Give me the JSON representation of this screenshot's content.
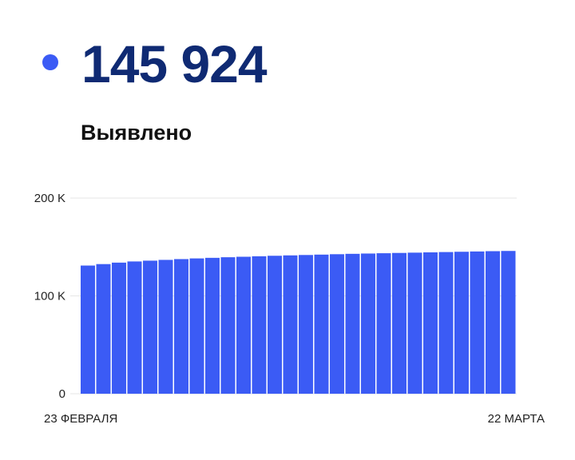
{
  "colors": {
    "accent": "#3b5bf5",
    "number": "#0f2a73",
    "grid": "#e6e6e6"
  },
  "header": {
    "value": "145 924",
    "label": "Выявлено"
  },
  "chart_data": {
    "type": "bar",
    "ylim": [
      0,
      200000
    ],
    "y_ticks": [
      {
        "value": 0,
        "label": "0"
      },
      {
        "value": 100000,
        "label": "100 K"
      },
      {
        "value": 200000,
        "label": "200 K"
      }
    ],
    "x_start_label": "23 ФЕВРАЛЯ",
    "x_end_label": "22 МАРТА",
    "values": [
      131000,
      132500,
      134000,
      135200,
      136000,
      136800,
      137600,
      138300,
      138900,
      139500,
      140000,
      140500,
      141000,
      141400,
      141800,
      142200,
      142600,
      143000,
      143300,
      143600,
      143900,
      144200,
      144500,
      144800,
      145100,
      145400,
      145700,
      145924
    ]
  }
}
